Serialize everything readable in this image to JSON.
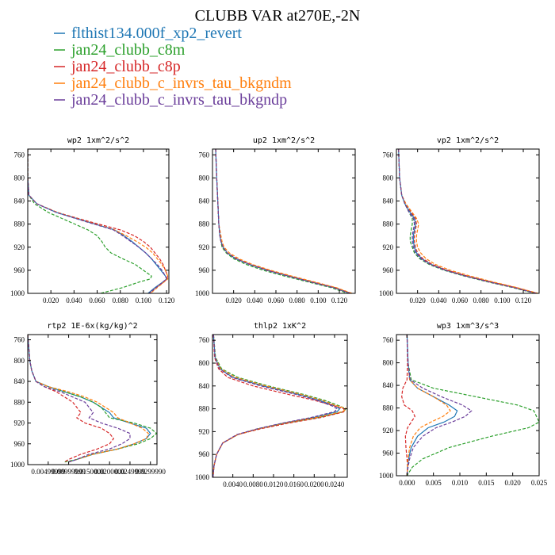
{
  "figure": {
    "title": "CLUBB VAR at270E,-2N"
  },
  "legend": [
    {
      "label": "flthist134.000f_xp2_revert",
      "color": "#1f77b4",
      "style": "solid"
    },
    {
      "label": "jan24_clubb_c8m",
      "color": "#2ca02c",
      "style": "dashed"
    },
    {
      "label": "jan24_clubb_c8p",
      "color": "#d62728",
      "style": "dashed"
    },
    {
      "label": "jan24_clubb_c_invrs_tau_bkgndm",
      "color": "#ff7f0e",
      "style": "dashed"
    },
    {
      "label": "jan24_clubb_c_invrs_tau_bkgndp",
      "color": "#6a3d9a",
      "style": "dashed"
    }
  ],
  "chart_data": [
    {
      "type": "line",
      "title": "wp2  1xm^2/s^2",
      "xlim": [
        0,
        0.122
      ],
      "ylim": [
        1000,
        750
      ],
      "xticks": [
        0.02,
        0.04,
        0.06,
        0.08,
        0.1,
        0.12
      ],
      "xtick_labels": [
        "0.020",
        "0.040",
        "0.060",
        "0.080",
        "0.100",
        "0.120"
      ],
      "yticks": [
        760,
        800,
        840,
        880,
        920,
        960,
        1000
      ],
      "y": [
        750,
        800,
        830,
        845,
        860,
        875,
        890,
        900,
        910,
        920,
        930,
        940,
        950,
        960,
        970,
        975,
        980,
        990,
        1000
      ],
      "series": [
        {
          "values": [
            0,
            0,
            0.001,
            0.008,
            0.025,
            0.05,
            0.075,
            0.083,
            0.09,
            0.096,
            0.102,
            0.107,
            0.111,
            0.115,
            0.119,
            0.12,
            0.117,
            0.11,
            0.104
          ]
        },
        {
          "values": [
            0,
            0,
            0.001,
            0.006,
            0.018,
            0.035,
            0.052,
            0.06,
            0.064,
            0.067,
            0.072,
            0.082,
            0.093,
            0.1,
            0.107,
            0.106,
            0.097,
            0.082,
            0.063
          ]
        },
        {
          "values": [
            0,
            0,
            0.001,
            0.008,
            0.026,
            0.052,
            0.08,
            0.092,
            0.1,
            0.106,
            0.11,
            0.114,
            0.117,
            0.119,
            0.121,
            0.12,
            0.118,
            0.111,
            0.105
          ]
        },
        {
          "values": [
            0,
            0,
            0.001,
            0.008,
            0.026,
            0.05,
            0.075,
            0.085,
            0.094,
            0.102,
            0.108,
            0.112,
            0.116,
            0.119,
            0.121,
            0.121,
            0.118,
            0.112,
            0.106
          ]
        },
        {
          "values": [
            0,
            0,
            0.001,
            0.008,
            0.025,
            0.049,
            0.074,
            0.082,
            0.089,
            0.096,
            0.102,
            0.107,
            0.112,
            0.116,
            0.119,
            0.12,
            0.117,
            0.111,
            0.105
          ]
        }
      ]
    },
    {
      "type": "line",
      "title": "up2  1xm^2/s^2",
      "xlim": [
        0,
        0.135
      ],
      "ylim": [
        1000,
        750
      ],
      "xticks": [
        0.02,
        0.04,
        0.06,
        0.08,
        0.1,
        0.12
      ],
      "xtick_labels": [
        "0.020",
        "0.040",
        "0.060",
        "0.080",
        "0.100",
        "0.120"
      ],
      "yticks": [
        760,
        800,
        840,
        880,
        920,
        960,
        1000
      ],
      "y": [
        750,
        800,
        840,
        880,
        900,
        910,
        920,
        930,
        940,
        950,
        960,
        970,
        980,
        990,
        1000
      ],
      "series": [
        {
          "values": [
            0.003,
            0.004,
            0.005,
            0.006,
            0.007,
            0.008,
            0.01,
            0.014,
            0.022,
            0.035,
            0.052,
            0.072,
            0.093,
            0.115,
            0.13
          ]
        },
        {
          "values": [
            0.003,
            0.004,
            0.005,
            0.006,
            0.007,
            0.008,
            0.009,
            0.013,
            0.02,
            0.032,
            0.048,
            0.068,
            0.09,
            0.112,
            0.128
          ]
        },
        {
          "values": [
            0.003,
            0.004,
            0.005,
            0.006,
            0.007,
            0.008,
            0.01,
            0.014,
            0.023,
            0.036,
            0.053,
            0.073,
            0.094,
            0.116,
            0.131
          ]
        },
        {
          "values": [
            0.003,
            0.004,
            0.005,
            0.006,
            0.008,
            0.009,
            0.011,
            0.016,
            0.025,
            0.038,
            0.055,
            0.075,
            0.096,
            0.117,
            0.132
          ]
        },
        {
          "values": [
            0.003,
            0.004,
            0.005,
            0.006,
            0.007,
            0.008,
            0.01,
            0.014,
            0.022,
            0.035,
            0.051,
            0.071,
            0.092,
            0.114,
            0.13
          ]
        }
      ]
    },
    {
      "type": "line",
      "title": "vp2  1xm^2/s^2",
      "xlim": [
        0,
        0.135
      ],
      "ylim": [
        1000,
        750
      ],
      "xticks": [
        0.02,
        0.04,
        0.06,
        0.08,
        0.1,
        0.12
      ],
      "xtick_labels": [
        "0.020",
        "0.040",
        "0.060",
        "0.080",
        "0.100",
        "0.120"
      ],
      "yticks": [
        760,
        800,
        840,
        880,
        920,
        960,
        1000
      ],
      "y": [
        750,
        800,
        830,
        845,
        860,
        870,
        880,
        890,
        900,
        910,
        920,
        930,
        940,
        950,
        960,
        970,
        980,
        990,
        1000
      ],
      "series": [
        {
          "values": [
            0.002,
            0.003,
            0.005,
            0.008,
            0.013,
            0.017,
            0.018,
            0.017,
            0.016,
            0.016,
            0.017,
            0.019,
            0.024,
            0.033,
            0.047,
            0.066,
            0.088,
            0.112,
            0.132
          ]
        },
        {
          "values": [
            0.002,
            0.003,
            0.005,
            0.008,
            0.012,
            0.015,
            0.015,
            0.014,
            0.013,
            0.013,
            0.015,
            0.017,
            0.022,
            0.031,
            0.045,
            0.064,
            0.086,
            0.11,
            0.131
          ]
        },
        {
          "values": [
            0.002,
            0.003,
            0.005,
            0.009,
            0.014,
            0.018,
            0.019,
            0.018,
            0.017,
            0.017,
            0.018,
            0.02,
            0.025,
            0.034,
            0.048,
            0.067,
            0.089,
            0.113,
            0.133
          ]
        },
        {
          "values": [
            0.002,
            0.003,
            0.005,
            0.009,
            0.015,
            0.019,
            0.021,
            0.02,
            0.019,
            0.019,
            0.02,
            0.023,
            0.028,
            0.037,
            0.051,
            0.07,
            0.091,
            0.114,
            0.134
          ]
        },
        {
          "values": [
            0.002,
            0.003,
            0.005,
            0.008,
            0.012,
            0.016,
            0.017,
            0.016,
            0.015,
            0.015,
            0.016,
            0.018,
            0.023,
            0.032,
            0.046,
            0.065,
            0.087,
            0.111,
            0.132
          ]
        }
      ]
    },
    {
      "type": "line",
      "title": "rtp2  1E-6x(kg/kg)^2",
      "xlim": [
        0,
        0.0316
      ],
      "ylim": [
        1000,
        750
      ],
      "xticks": [
        0.005,
        0.01,
        0.015,
        0.02,
        0.025,
        0.03
      ],
      "xtick_labels": [
        "0.00499999",
        "0.00999999",
        "0.0150000",
        "0.0200000",
        "0.0249999",
        "0.0299990"
      ],
      "yticks": [
        760,
        800,
        840,
        880,
        920,
        960,
        1000
      ],
      "y": [
        750,
        800,
        820,
        840,
        850,
        860,
        870,
        880,
        890,
        900,
        910,
        920,
        930,
        940,
        950,
        960,
        970,
        980,
        990,
        995
      ],
      "series": [
        {
          "values": [
            0,
            0.0005,
            0.001,
            0.002,
            0.005,
            0.009,
            0.013,
            0.016,
            0.018,
            0.02,
            0.021,
            0.025,
            0.029,
            0.03,
            0.029,
            0.026,
            0.022,
            0.016,
            0.012,
            0.01
          ]
        },
        {
          "values": [
            0,
            0.0005,
            0.001,
            0.002,
            0.005,
            0.009,
            0.013,
            0.016,
            0.018,
            0.019,
            0.02,
            0.026,
            0.03,
            0.0315,
            0.03,
            0.027,
            0.022,
            0.016,
            0.012,
            0.009
          ]
        },
        {
          "values": [
            0,
            0.0005,
            0.001,
            0.002,
            0.004,
            0.007,
            0.009,
            0.011,
            0.012,
            0.013,
            0.012,
            0.014,
            0.018,
            0.02,
            0.021,
            0.02,
            0.017,
            0.013,
            0.01,
            0.009
          ]
        },
        {
          "values": [
            0,
            0.0005,
            0.001,
            0.002,
            0.005,
            0.01,
            0.014,
            0.017,
            0.019,
            0.021,
            0.022,
            0.025,
            0.028,
            0.0295,
            0.029,
            0.026,
            0.022,
            0.016,
            0.012,
            0.01
          ]
        },
        {
          "values": [
            0,
            0.0005,
            0.001,
            0.002,
            0.004,
            0.008,
            0.011,
            0.014,
            0.015,
            0.016,
            0.015,
            0.018,
            0.022,
            0.025,
            0.025,
            0.023,
            0.02,
            0.015,
            0.012,
            0.01
          ]
        }
      ]
    },
    {
      "type": "line",
      "title": "thlp2  1xK^2",
      "xlim": [
        0,
        0.0265
      ],
      "ylim": [
        1000,
        750
      ],
      "xticks": [
        0.004,
        0.008,
        0.012,
        0.016,
        0.02,
        0.024
      ],
      "xtick_labels": [
        "0.0040",
        "0.0080",
        "0.0120",
        "0.0160",
        "0.0200",
        "0.0240"
      ],
      "yticks": [
        760,
        800,
        840,
        880,
        920,
        960,
        1000
      ],
      "y": [
        750,
        790,
        810,
        825,
        840,
        855,
        865,
        875,
        880,
        885,
        895,
        905,
        915,
        925,
        940,
        960,
        980,
        1000
      ],
      "series": [
        {
          "values": [
            0.0002,
            0.0005,
            0.0015,
            0.004,
            0.01,
            0.017,
            0.021,
            0.024,
            0.025,
            0.0245,
            0.02,
            0.014,
            0.009,
            0.005,
            0.002,
            0.0008,
            0.0003,
            0.0001
          ]
        },
        {
          "values": [
            0.0002,
            0.0006,
            0.0018,
            0.005,
            0.011,
            0.018,
            0.022,
            0.025,
            0.0262,
            0.0258,
            0.021,
            0.0145,
            0.009,
            0.005,
            0.002,
            0.0008,
            0.0003,
            0.0001
          ]
        },
        {
          "values": [
            0.0002,
            0.0004,
            0.0012,
            0.003,
            0.008,
            0.015,
            0.02,
            0.024,
            0.0258,
            0.026,
            0.0215,
            0.015,
            0.0095,
            0.005,
            0.002,
            0.0008,
            0.0003,
            0.0001
          ]
        },
        {
          "values": [
            0.0002,
            0.0005,
            0.0016,
            0.0045,
            0.0105,
            0.0175,
            0.0215,
            0.0245,
            0.0265,
            0.0255,
            0.0205,
            0.0142,
            0.009,
            0.005,
            0.002,
            0.0008,
            0.0003,
            0.0001
          ]
        },
        {
          "values": [
            0.0002,
            0.0005,
            0.0014,
            0.0038,
            0.0095,
            0.0165,
            0.0205,
            0.0235,
            0.0245,
            0.024,
            0.0195,
            0.0138,
            0.0088,
            0.0048,
            0.002,
            0.0008,
            0.0003,
            0.0001
          ]
        }
      ]
    },
    {
      "type": "line",
      "title": "wp3  1xm^3/s^3",
      "xlim": [
        -0.002,
        0.025
      ],
      "ylim": [
        1000,
        750
      ],
      "xticks": [
        0,
        0.005,
        0.01,
        0.015,
        0.02,
        0.025
      ],
      "xtick_labels": [
        "0.000",
        "0.005",
        "0.010",
        "0.015",
        "0.020",
        "0.025"
      ],
      "yticks": [
        760,
        800,
        840,
        880,
        920,
        960,
        1000
      ],
      "y": [
        750,
        800,
        830,
        845,
        860,
        875,
        885,
        895,
        905,
        915,
        930,
        950,
        970,
        985,
        1000
      ],
      "series": [
        {
          "values": [
            0,
            0.0002,
            0.0005,
            0.002,
            0.005,
            0.008,
            0.0095,
            0.009,
            0.007,
            0.004,
            0.002,
            0.0008,
            0.0003,
            0.0001,
            0
          ]
        },
        {
          "values": [
            0,
            0.0002,
            0.0008,
            0.005,
            0.013,
            0.021,
            0.024,
            0.0245,
            0.025,
            0.023,
            0.016,
            0.008,
            0.003,
            0.001,
            0
          ]
        },
        {
          "values": [
            0,
            0.0001,
            0,
            -0.0008,
            -0.001,
            -0.0005,
            0.001,
            0.0015,
            0.0008,
            0.0001,
            -0.0003,
            -0.0002,
            0,
            0.0001,
            0
          ]
        },
        {
          "values": [
            0,
            0.0002,
            0.0005,
            0.002,
            0.005,
            0.0075,
            0.0082,
            0.0068,
            0.0045,
            0.0025,
            0.0012,
            0.0005,
            0.0002,
            0.0001,
            0
          ]
        },
        {
          "values": [
            0,
            0.0002,
            0.0006,
            0.003,
            0.0065,
            0.0105,
            0.0122,
            0.011,
            0.0085,
            0.0055,
            0.003,
            0.0012,
            0.0005,
            0.0002,
            0
          ]
        }
      ]
    }
  ]
}
